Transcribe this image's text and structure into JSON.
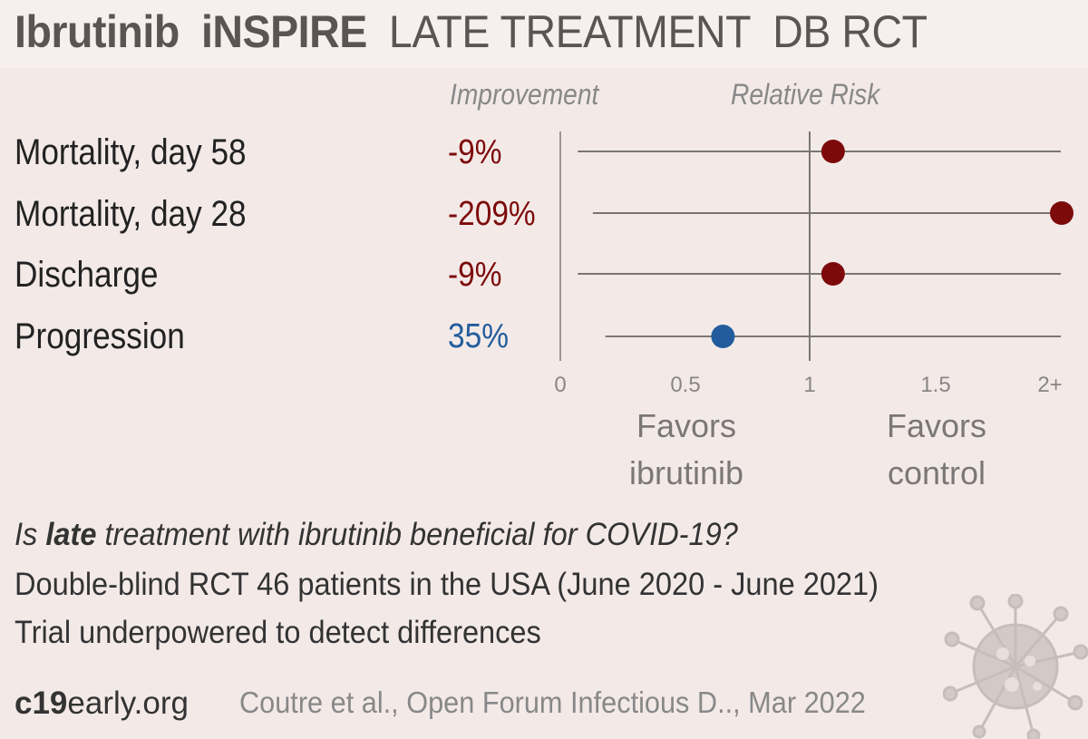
{
  "header": {
    "drug": "Ibrutinib",
    "trial": "iNSPIRE",
    "stage": "LATE TREATMENT",
    "design": "DB RCT"
  },
  "columns": {
    "improvement": "Improvement",
    "relative_risk": "Relative Risk"
  },
  "chart_data": {
    "type": "forest",
    "x_ticks": [
      "0",
      "0.5",
      "1",
      "1.5",
      "2+"
    ],
    "xlim": [
      0,
      2
    ],
    "reference_line": 1,
    "rows": [
      {
        "label": "Mortality, day 58",
        "improvement": "-9%",
        "rr": 1.09,
        "ci_low": 0.07,
        "ci_high": 2.0,
        "color": "#7d0a0a"
      },
      {
        "label": "Mortality, day 28",
        "improvement": "-209%",
        "rr": 2.0,
        "ci_low": 0.13,
        "ci_high": 2.0,
        "color": "#7d0a0a"
      },
      {
        "label": "Discharge",
        "improvement": "-9%",
        "rr": 1.09,
        "ci_low": 0.07,
        "ci_high": 2.0,
        "color": "#7d0a0a"
      },
      {
        "label": "Progression",
        "improvement": "35%",
        "rr": 0.65,
        "ci_low": 0.18,
        "ci_high": 2.0,
        "color": "#235c9c"
      }
    ],
    "favors_left": [
      "Favors",
      "ibrutinib"
    ],
    "favors_right": [
      "Favors",
      "control"
    ]
  },
  "summary": {
    "question_prefix": "Is ",
    "question_bold": "late",
    "question_suffix": " treatment with ibrutinib beneficial for COVID-19?",
    "line1": "Double-blind RCT 46 patients in the USA (June 2020 - June 2021)",
    "line2": "Trial underpowered to detect differences"
  },
  "footer": {
    "site_bold": "c19",
    "site_rest": "early.org",
    "citation": "Coutre et al., Open Forum Infectious D.., Mar 2022"
  },
  "colors": {
    "negative": "#7d0a0a",
    "positive": "#235c9c",
    "background": "#f3eae8"
  }
}
